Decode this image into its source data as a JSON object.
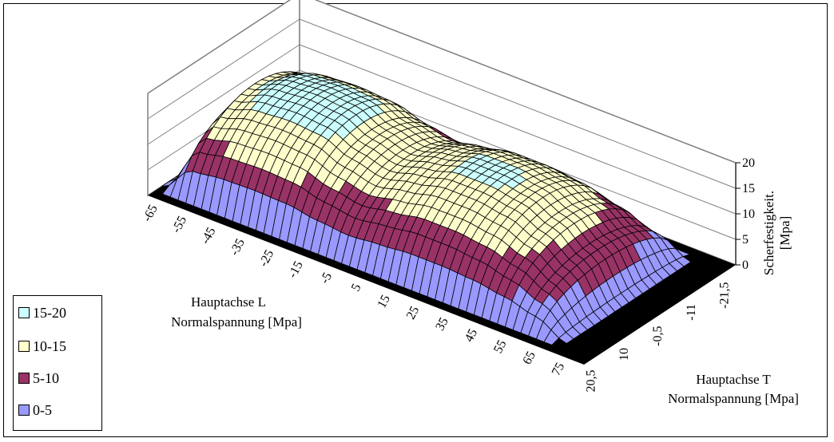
{
  "chart_data": {
    "type": "surface",
    "title": "",
    "xlabel": "Hauptachse L Normalspannung [Mpa]",
    "xlabel_lines": [
      "Hauptachse L",
      "Normalspannung [Mpa]"
    ],
    "ylabel": "Hauptachse T Normalspannung [Mpa]",
    "ylabel_lines": [
      "Hauptachse T",
      "Normalspannung [Mpa]"
    ],
    "zlabel": "Scherfestigkeit. [Mpa]",
    "zlabel_lines": [
      "Scherfestigkeit.",
      "[Mpa]"
    ],
    "x_ticks": [
      "-65",
      "-55",
      "-45",
      "-35",
      "-25",
      "-15",
      "-5",
      "5",
      "15",
      "25",
      "35",
      "45",
      "55",
      "65",
      "75"
    ],
    "y_ticks": [
      "20,5",
      "10",
      "-0,5",
      "-11",
      "-21,5"
    ],
    "z_ticks": [
      "0",
      "5",
      "10",
      "15",
      "20"
    ],
    "zlim": [
      0,
      20
    ],
    "legend": [
      {
        "label": "15-20",
        "color": "#ccffff"
      },
      {
        "label": "10-15",
        "color": "#ffffcc"
      },
      {
        "label": "5-10",
        "color": "#993366"
      },
      {
        "label": "0-5",
        "color": "#9999ff"
      }
    ],
    "band_colors": [
      "#9999ff",
      "#993366",
      "#ffffcc",
      "#ccffff"
    ],
    "floor_color": "#000000",
    "surface_peak_profile": [
      {
        "x": -65,
        "z": 0
      },
      {
        "x": -55,
        "z": 14.5
      },
      {
        "x": -45,
        "z": 16.5
      },
      {
        "x": -35,
        "z": 17
      },
      {
        "x": -25,
        "z": 16.5
      },
      {
        "x": -15,
        "z": 14
      },
      {
        "x": -5,
        "z": 12.5
      },
      {
        "x": 5,
        "z": 14
      },
      {
        "x": 15,
        "z": 15.5
      },
      {
        "x": 25,
        "z": 15.5
      },
      {
        "x": 35,
        "z": 14.5
      },
      {
        "x": 45,
        "z": 12
      },
      {
        "x": 55,
        "z": 8
      },
      {
        "x": 65,
        "z": 0
      },
      {
        "x": 75,
        "z": 0
      }
    ]
  }
}
